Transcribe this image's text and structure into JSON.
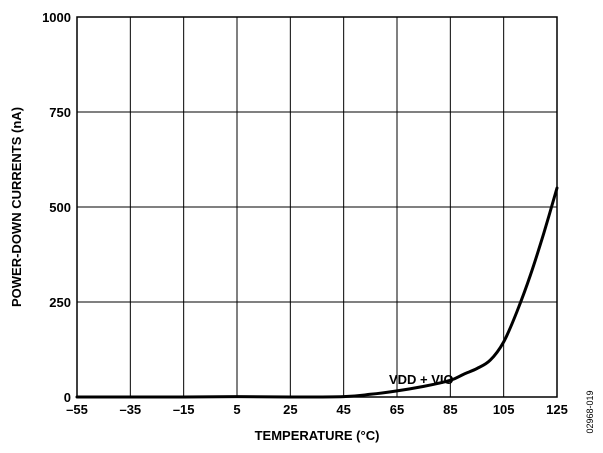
{
  "chart_data": {
    "type": "line",
    "xlabel": "TEMPERATURE (°C)",
    "ylabel": "POWER-DOWN CURRENTS (nA)",
    "xlim": [
      -55,
      125
    ],
    "ylim": [
      0,
      1000
    ],
    "x_ticks": [
      -55,
      -35,
      -15,
      5,
      25,
      45,
      65,
      85,
      105,
      125
    ],
    "x_tick_labels": [
      "–55",
      "–35",
      "–15",
      "5",
      "25",
      "45",
      "65",
      "85",
      "105",
      "125"
    ],
    "y_ticks": [
      0,
      250,
      500,
      750,
      1000
    ],
    "y_tick_labels": [
      "0",
      "250",
      "500",
      "750",
      "1000"
    ],
    "grid": true,
    "series": [
      {
        "name": "VDD + VIO",
        "x": [
          -55,
          -35,
          -15,
          5,
          25,
          45,
          55,
          65,
          75,
          85,
          90,
          95,
          100,
          105,
          110,
          115,
          120,
          125
        ],
        "y": [
          0,
          0,
          0,
          1,
          0,
          1,
          7,
          16,
          28,
          44,
          60,
          75,
          97,
          145,
          225,
          320,
          430,
          550
        ]
      }
    ],
    "annotations": [
      {
        "text": "VDD + VIO",
        "x": 65,
        "y": 60
      }
    ]
  },
  "figure_id": "02968-019",
  "colors": {
    "line": "#000000",
    "grid": "#000000",
    "background": "#ffffff"
  }
}
